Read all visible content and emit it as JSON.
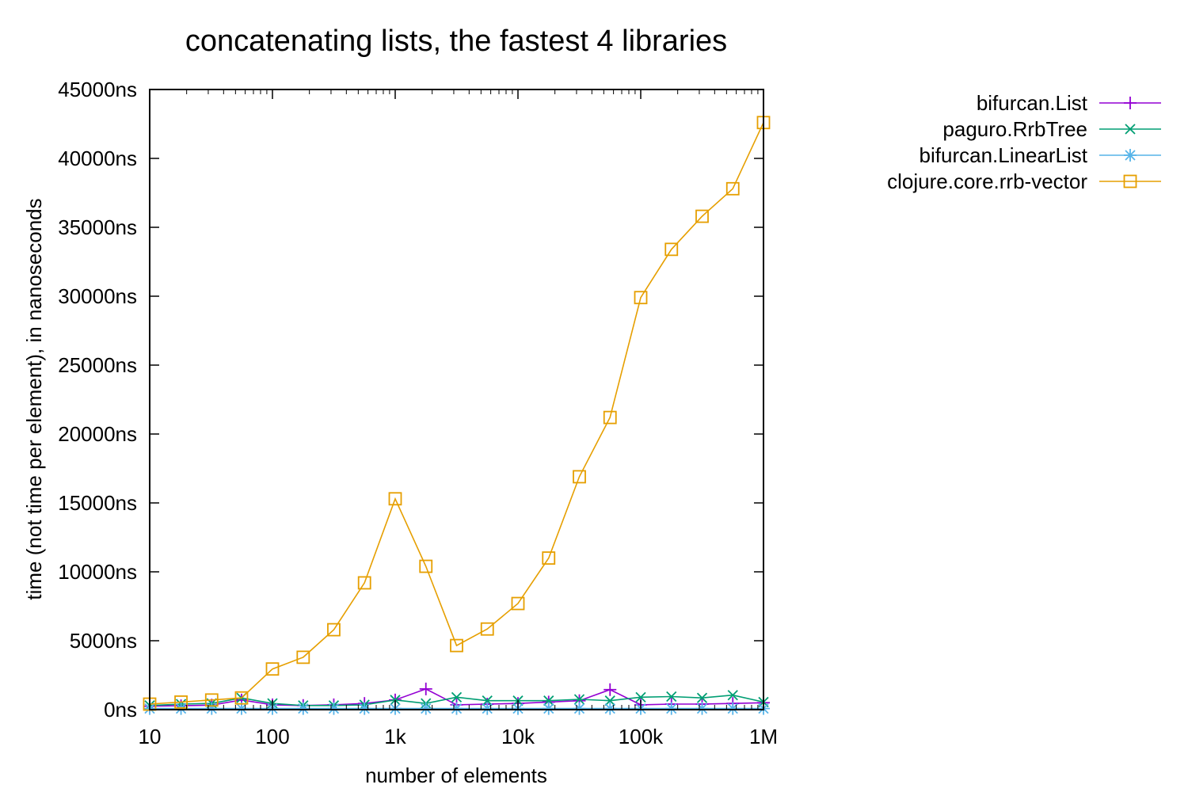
{
  "chart_data": {
    "type": "line",
    "title": "concatenating lists, the fastest 4 libraries",
    "xlabel": "number of elements",
    "ylabel": "time (not time per element), in nanoseconds",
    "x_scale": "log",
    "xlim": [
      10,
      1000000
    ],
    "ylim": [
      0,
      45000
    ],
    "x_ticks": [
      {
        "value": 10,
        "label": "10"
      },
      {
        "value": 100,
        "label": "100"
      },
      {
        "value": 1000,
        "label": "1k"
      },
      {
        "value": 10000,
        "label": "10k"
      },
      {
        "value": 100000,
        "label": "100k"
      },
      {
        "value": 1000000,
        "label": "1M"
      }
    ],
    "y_ticks": [
      {
        "value": 0,
        "label": "0ns"
      },
      {
        "value": 5000,
        "label": "5000ns"
      },
      {
        "value": 10000,
        "label": "10000ns"
      },
      {
        "value": 15000,
        "label": "15000ns"
      },
      {
        "value": 20000,
        "label": "20000ns"
      },
      {
        "value": 25000,
        "label": "25000ns"
      },
      {
        "value": 30000,
        "label": "30000ns"
      },
      {
        "value": 35000,
        "label": "35000ns"
      },
      {
        "value": 40000,
        "label": "40000ns"
      },
      {
        "value": 45000,
        "label": "45000ns"
      }
    ],
    "legend_position": "top-right, outside plot",
    "grid": false,
    "x": [
      10,
      18,
      32,
      56,
      100,
      178,
      316,
      562,
      1000,
      1778,
      3162,
      5623,
      10000,
      17783,
      31623,
      56234,
      100000,
      177828,
      316228,
      562341,
      1000000
    ],
    "series": [
      {
        "name": "bifurcan.List",
        "color": "#9400d3",
        "marker": "plus",
        "values": [
          250,
          280,
          330,
          700,
          350,
          300,
          350,
          450,
          700,
          1500,
          350,
          400,
          450,
          550,
          650,
          1450,
          350,
          400,
          400,
          450,
          500
        ]
      },
      {
        "name": "paguro.RrbTree",
        "color": "#009e73",
        "marker": "x",
        "values": [
          300,
          400,
          450,
          850,
          450,
          300,
          300,
          350,
          700,
          450,
          900,
          650,
          650,
          650,
          750,
          650,
          900,
          950,
          850,
          1050,
          550
        ]
      },
      {
        "name": "bifurcan.LinearList",
        "color": "#56b4e9",
        "marker": "star",
        "values": [
          80,
          80,
          80,
          80,
          80,
          80,
          80,
          80,
          80,
          80,
          80,
          80,
          80,
          80,
          80,
          80,
          80,
          80,
          80,
          80,
          80
        ]
      },
      {
        "name": "clojure.core.rrb-vector",
        "color": "#e69f00",
        "marker": "square",
        "values": [
          400,
          550,
          700,
          850,
          2950,
          3800,
          5800,
          9200,
          15300,
          10400,
          4650,
          5850,
          7700,
          11000,
          16900,
          21200,
          29900,
          33400,
          35800,
          37800,
          42600
        ]
      }
    ]
  }
}
